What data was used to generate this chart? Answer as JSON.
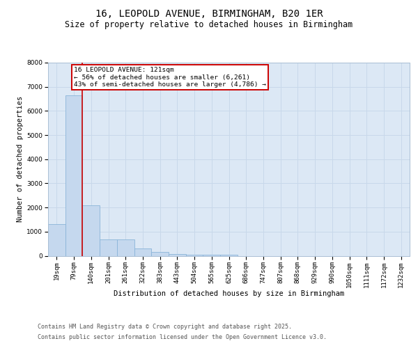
{
  "title_line1": "16, LEOPOLD AVENUE, BIRMINGHAM, B20 1ER",
  "title_line2": "Size of property relative to detached houses in Birmingham",
  "xlabel": "Distribution of detached houses by size in Birmingham",
  "ylabel": "Number of detached properties",
  "categories": [
    "19sqm",
    "79sqm",
    "140sqm",
    "201sqm",
    "261sqm",
    "322sqm",
    "383sqm",
    "443sqm",
    "504sqm",
    "565sqm",
    "625sqm",
    "686sqm",
    "747sqm",
    "807sqm",
    "868sqm",
    "929sqm",
    "990sqm",
    "1050sqm",
    "1111sqm",
    "1172sqm",
    "1232sqm"
  ],
  "values": [
    1300,
    6650,
    2100,
    670,
    670,
    300,
    150,
    80,
    40,
    30,
    55,
    0,
    0,
    0,
    0,
    0,
    0,
    0,
    0,
    0,
    0
  ],
  "bar_color": "#c5d8ee",
  "bar_edge_color": "#8ab4d8",
  "vline_color": "#cc0000",
  "vline_x_index": 1,
  "annotation_text": "16 LEOPOLD AVENUE: 121sqm\n← 56% of detached houses are smaller (6,261)\n43% of semi-detached houses are larger (4,786) →",
  "annotation_box_color": "#ffffff",
  "annotation_box_edge": "#cc0000",
  "ylim": [
    0,
    8000
  ],
  "yticks": [
    0,
    1000,
    2000,
    3000,
    4000,
    5000,
    6000,
    7000,
    8000
  ],
  "grid_color": "#c8d8ea",
  "background_color": "#dce8f5",
  "footer_line1": "Contains HM Land Registry data © Crown copyright and database right 2025.",
  "footer_line2": "Contains public sector information licensed under the Open Government Licence v3.0.",
  "title_fontsize": 10,
  "subtitle_fontsize": 8.5,
  "axis_label_fontsize": 7.5,
  "tick_fontsize": 6.5,
  "annotation_fontsize": 6.8,
  "footer_fontsize": 6.0
}
